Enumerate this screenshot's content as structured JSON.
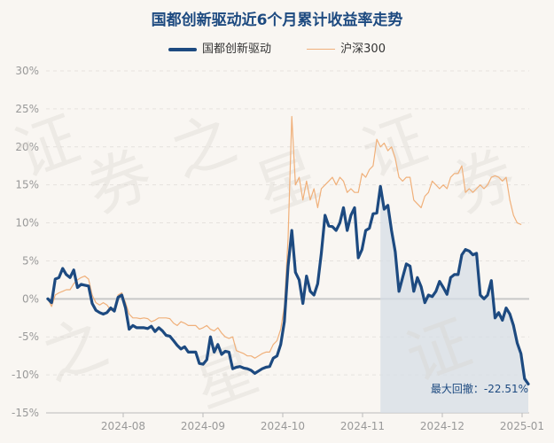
{
  "chart_data": {
    "type": "line",
    "title": "国都创新驱动近6个月累计收益率走势",
    "ylim": [
      -15,
      30
    ],
    "y_ticks": [
      "30%",
      "25%",
      "20%",
      "15%",
      "10%",
      "5%",
      "0%",
      "-5%",
      "-10%",
      "-15%"
    ],
    "x_ticks": [
      "2024-08",
      "2024-09",
      "2024-10",
      "2024-11",
      "2024-12",
      "2025-01"
    ],
    "legend_position": "top-center",
    "colors": {
      "fund": "#1d4a80",
      "index": "#f0b07a",
      "drawdown": "#d5dde6"
    },
    "series": [
      {
        "name": "国都创新驱动",
        "values": [
          0,
          -0.5,
          2.6,
          2.8,
          4.0,
          3.2,
          2.8,
          3.8,
          1.5,
          1.9,
          1.8,
          1.7,
          -0.6,
          -1.5,
          -1.8,
          -2.0,
          -1.8,
          -1.2,
          -1.6,
          0.2,
          0.5,
          -1.2,
          -4.0,
          -3.5,
          -3.8,
          -3.8,
          -3.8,
          -3.9,
          -3.6,
          -4.3,
          -3.8,
          -4.2,
          -4.8,
          -4.9,
          -5.5,
          -6.1,
          -6.6,
          -6.3,
          -7.0,
          -7.0,
          -7.0,
          -8.5,
          -8.6,
          -8.0,
          -5.0,
          -7.0,
          -6.0,
          -7.3,
          -6.9,
          -7.0,
          -9.2,
          -9.0,
          -8.9,
          -9.1,
          -9.2,
          -9.4,
          -9.8,
          -9.5,
          -9.2,
          -9.0,
          -8.9,
          -7.8,
          -7.5,
          -6.0,
          -3.0,
          4.3,
          9.0,
          3.5,
          2.5,
          -0.6,
          3.0,
          1.0,
          0.5,
          2.0,
          6.0,
          11.0,
          9.6,
          9.5,
          9.0,
          10.0,
          12.0,
          9.0,
          11.0,
          12.0,
          5.4,
          6.5,
          9.0,
          9.3,
          11.2,
          11.3,
          14.8,
          11.8,
          12.3,
          9.0,
          6.2,
          1.0,
          2.8,
          4.6,
          4.3,
          1.0,
          2.8,
          1.6,
          -0.5,
          0.5,
          0.3,
          1.0,
          2.3,
          1.5,
          0.6,
          2.8,
          3.2,
          3.2,
          5.8,
          6.5,
          6.3,
          5.8,
          6.0,
          0.5,
          0,
          0.5,
          2.4,
          -2.5,
          -1.8,
          -2.8,
          -1.2,
          -2.0,
          -3.5,
          -5.8,
          -7.2,
          -10.5,
          -11.2
        ]
      },
      {
        "name": "沪深300",
        "values": [
          0,
          -1.0,
          0.5,
          0.8,
          1.0,
          1.2,
          1.2,
          2.0,
          2.5,
          2.8,
          3.0,
          2.6,
          0.5,
          -0.5,
          -0.8,
          -0.5,
          -0.8,
          -1.5,
          -1.5,
          0.5,
          0.8,
          -0.5,
          -2.0,
          -2.5,
          -2.5,
          -2.6,
          -2.5,
          -2.6,
          -3.0,
          -2.8,
          -2.5,
          -2.5,
          -2.5,
          -2.6,
          -3.2,
          -3.5,
          -3.0,
          -3.2,
          -3.5,
          -3.5,
          -3.5,
          -4.0,
          -3.8,
          -3.5,
          -4.0,
          -4.2,
          -3.8,
          -4.5,
          -5.0,
          -5.2,
          -5.0,
          -6.8,
          -7.0,
          -7.2,
          -7.5,
          -7.5,
          -7.8,
          -7.5,
          -7.2,
          -7.0,
          -7.0,
          -6.0,
          -5.5,
          -4.0,
          -1.0,
          8.0,
          24.0,
          15.0,
          16.0,
          13.0,
          15.5,
          13.0,
          14.5,
          12.0,
          14.5,
          15.0,
          15.5,
          16.0,
          15.0,
          16.0,
          15.5,
          14.0,
          14.5,
          14.0,
          14.0,
          16.5,
          16.0,
          17.0,
          17.5,
          21.0,
          20.0,
          20.5,
          19.5,
          20.0,
          18.5,
          16.0,
          15.5,
          16.0,
          16.0,
          13.0,
          12.5,
          12.0,
          13.5,
          14.0,
          15.5,
          15.0,
          14.5,
          15.0,
          14.5,
          16.0,
          16.5,
          16.5,
          17.5,
          14.0,
          14.5,
          14.0,
          14.5,
          15.0,
          14.5,
          15.0,
          16.0,
          16.2,
          16.0,
          15.5,
          16.0,
          13.0,
          11.0,
          10.0,
          9.8
        ]
      }
    ],
    "max_drawdown_label": "最大回撤：-22.51%"
  }
}
